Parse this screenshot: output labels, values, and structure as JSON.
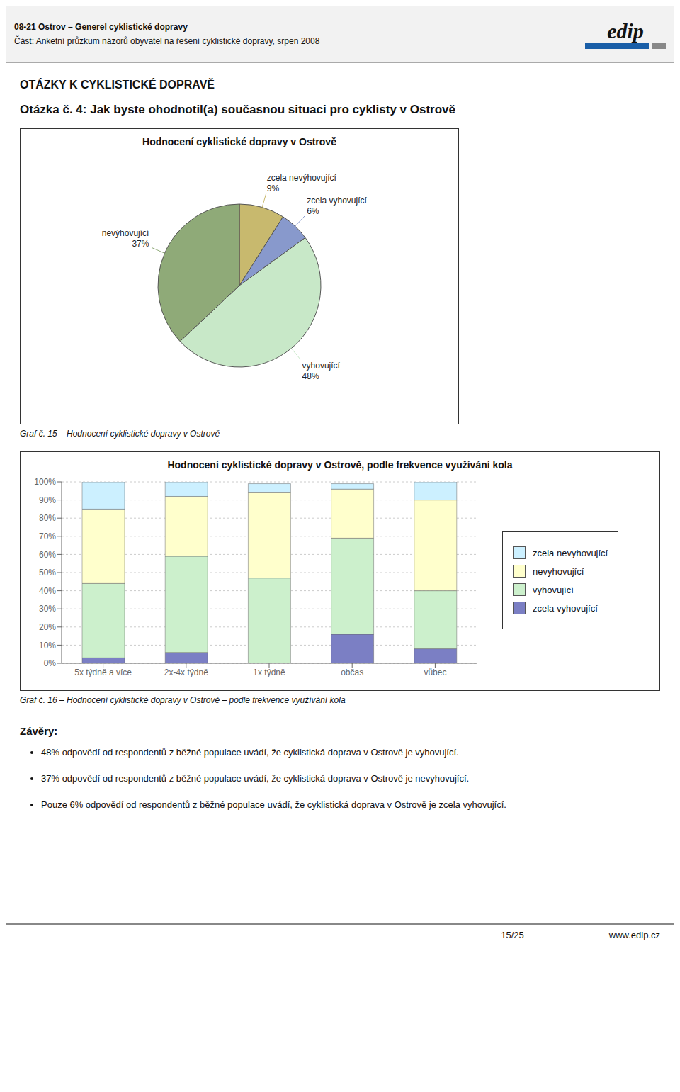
{
  "chart_data": [
    {
      "type": "pie",
      "title": "Hodnocení cyklistické dopravy v Ostrově",
      "categories": [
        "zcela nevýhovující",
        "zcela vyhovující",
        "vyhovující",
        "nevýhovující"
      ],
      "values": [
        9,
        6,
        48,
        37
      ],
      "value_labels": [
        "9%",
        "6%",
        "48%",
        "37%"
      ],
      "colors": [
        "#c8b96e",
        "#8899cc",
        "#c8e8c8",
        "#8faa78"
      ],
      "data_labels": true,
      "annotations": [
        "08-21 Ostrov – Generel cyklistické dopravy",
        "Část: Anketní průzkum názorů obyvatel na řešení cyklistické dopravy, srpen 2008",
        "edip",
        "OTÁZKY K CYKLISTICKÉ DOPRAVĚ",
        "Otázka č. 4: Jak byste ohodnotil(a) současnou situaci pro cyklisty v Ostrově",
        "Graf č. 15 – Hodnocení cyklistické dopravy v Ostrově"
      ]
    },
    {
      "type": "bar",
      "title": "Hodnocení cyklistické dopravy v Ostrově, podle frekvence využívání kola",
      "categories": [
        "5x týdně a více",
        "2x-4x týdně",
        "1x týdně",
        "občas",
        "vůbec"
      ],
      "series": [
        {
          "name": "zcela vyhovující",
          "color": "#7b7fc4",
          "values": [
            3,
            6,
            0,
            16,
            8
          ]
        },
        {
          "name": "vyhovující",
          "color": "#ccf0cc",
          "values": [
            41,
            53,
            47,
            53,
            32
          ]
        },
        {
          "name": "nevyhovující",
          "color": "#ffffcc",
          "values": [
            41,
            33,
            47,
            27,
            50
          ]
        },
        {
          "name": "zcela nevyhovující",
          "color": "#ccf0ff",
          "values": [
            15,
            8,
            5,
            3,
            10
          ]
        }
      ],
      "stacked": true,
      "ylim": [
        0,
        100
      ],
      "yticks": [
        {
          "value": 0,
          "label": "0%"
        },
        {
          "value": 10,
          "label": "10%"
        },
        {
          "value": 20,
          "label": "20%"
        },
        {
          "value": 30,
          "label": "30%"
        },
        {
          "value": 40,
          "label": "40%"
        },
        {
          "value": 50,
          "label": "50%"
        },
        {
          "value": 60,
          "label": "60%"
        },
        {
          "value": 70,
          "label": "70%"
        },
        {
          "value": 80,
          "label": "80%"
        },
        {
          "value": 90,
          "label": "90%"
        },
        {
          "value": 100,
          "label": "100%"
        }
      ],
      "grid": true,
      "legend": "right",
      "annotations": [
        "Graf č. 16 – Hodnocení cyklistické dopravy v Ostrově – podle frekvence využívání kola",
        "Závěry:",
        "48% odpovědí od respondentů z běžné populace uvádí, že cyklistická doprava v Ostrově je vyhovující.",
        "37% odpovědí od respondentů z běžné populace uvádí, že cyklistická doprava v Ostrově je nevyhovující.",
        "Pouze 6% odpovědí od respondentů z běžné populace uvádí, že cyklistická doprava v Ostrově je zcela vyhovující.",
        "15/25",
        "www.edip.cz"
      ]
    }
  ]
}
